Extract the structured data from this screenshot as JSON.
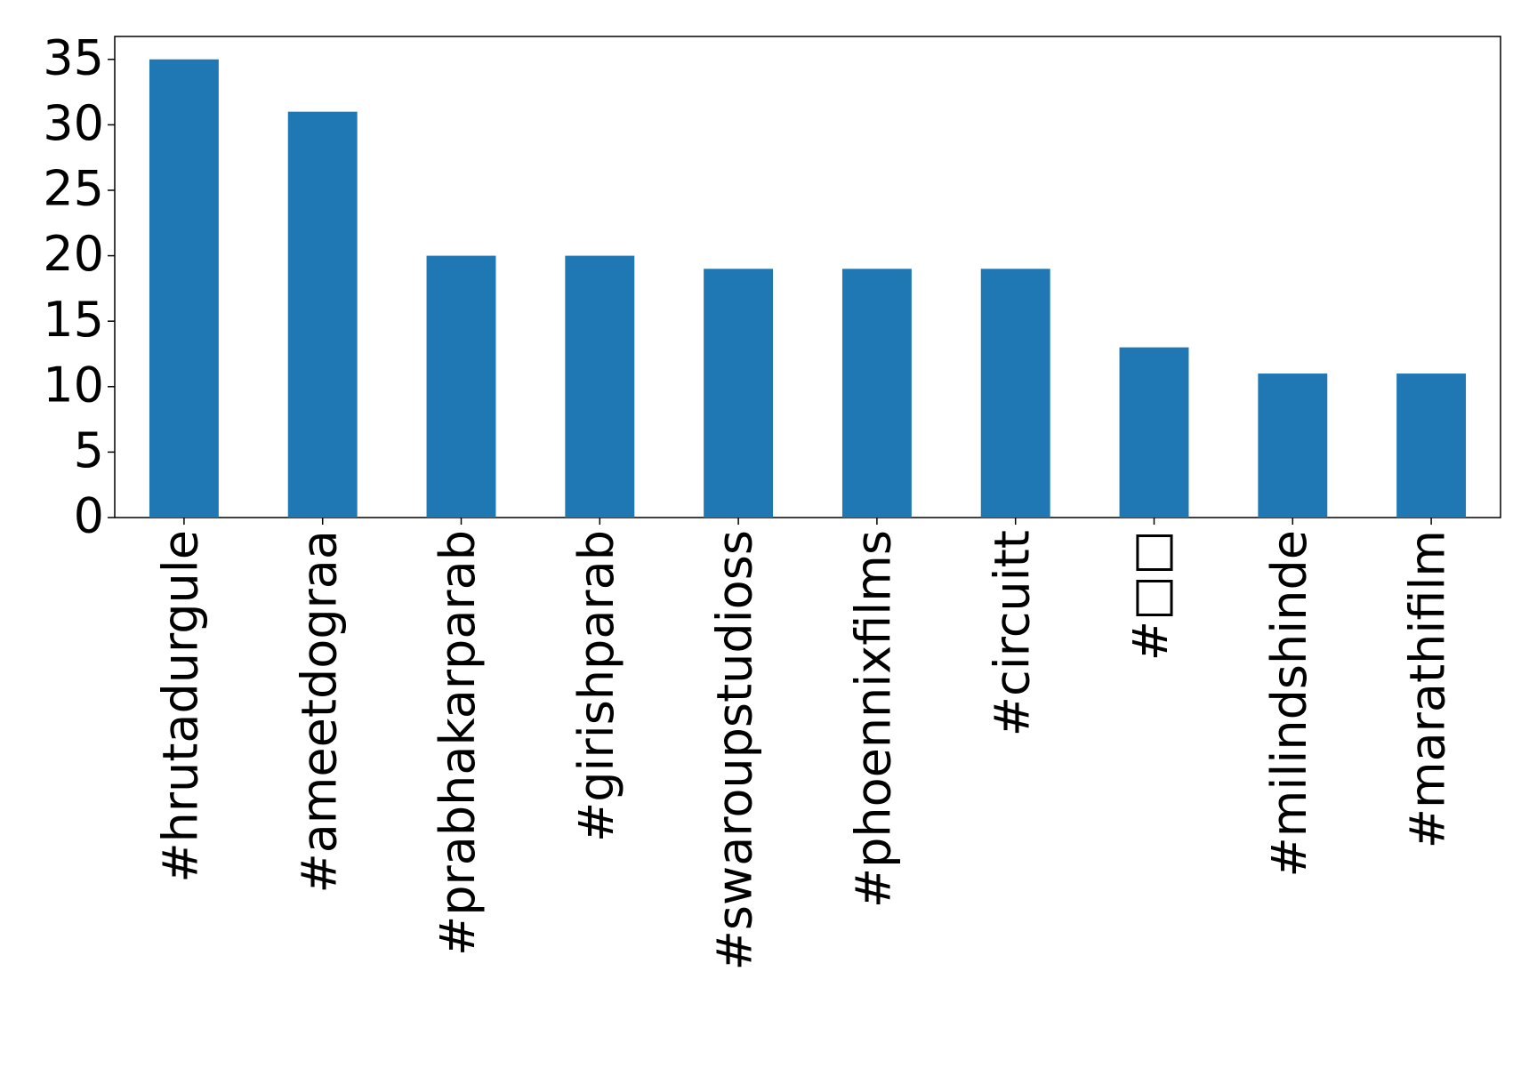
{
  "chart_data": {
    "type": "bar",
    "categories": [
      "#hrutadurgule",
      "#ameetdograa",
      "#prabhakarparab",
      "#girishparab",
      "#swaroupstudioss",
      "#phoennixfilms",
      "#circuitt",
      "#□□",
      "#milindshinde",
      "#marathifilm"
    ],
    "values": [
      35,
      31,
      20,
      20,
      19,
      19,
      19,
      13,
      11,
      11
    ],
    "color": "#1f77b4",
    "ylim": [
      0,
      36.75
    ],
    "yticks": [
      0,
      5,
      10,
      15,
      20,
      25,
      30,
      35
    ],
    "grid": false
  }
}
